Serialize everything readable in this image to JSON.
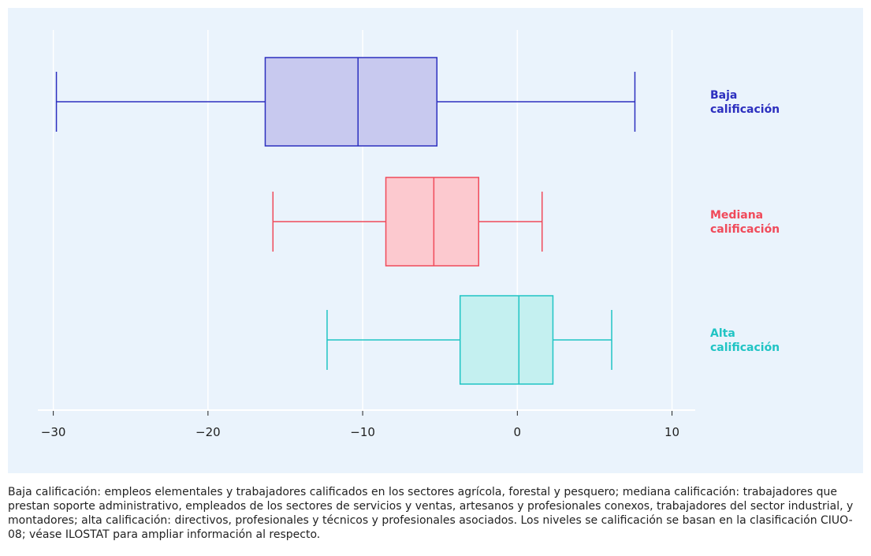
{
  "chart_data": {
    "type": "boxplot",
    "xlim": [
      -31,
      11.5
    ],
    "x_ticks": [
      -30,
      -20,
      -10,
      0,
      10
    ],
    "x_tick_labels": [
      "−30",
      "−20",
      "−10",
      "0",
      "10"
    ],
    "grid": true,
    "series": [
      {
        "name": "Baja calificación",
        "label_lines": [
          "Baja",
          "calificación"
        ],
        "color": "#2c2fbf",
        "fill": "#c8c9ef",
        "min": -29.8,
        "q1": -16.3,
        "median": -10.3,
        "q3": -5.2,
        "max": 7.6
      },
      {
        "name": "Mediana calificación",
        "label_lines": [
          "Mediana",
          "calificación"
        ],
        "color": "#f04a5a",
        "fill": "#fcc9cf",
        "min": -15.8,
        "q1": -8.5,
        "median": -5.4,
        "q3": -2.5,
        "max": 1.6
      },
      {
        "name": "Alta calificación",
        "label_lines": [
          "Alta",
          "calificación"
        ],
        "color": "#20c4c4",
        "fill": "#c4f0f0",
        "min": -12.3,
        "q1": -3.7,
        "median": 0.1,
        "q3": 2.3,
        "max": 6.1
      }
    ]
  },
  "footnote": "Baja calificación: empleos elementales y trabajadores calificados en los sectores agrícola, forestal y pesquero; mediana calificación: trabajadores que prestan soporte administrativo, empleados de los sectores de servicios y ventas, artesanos y profesionales conexos, trabajadores del sector industrial, y montadores; alta calificación: directivos, profesionales y técnicos y profesionales asociados. Los niveles se calificación se basan en la clasificación CIUO-08; véase ILOSTAT para ampliar información al respecto."
}
